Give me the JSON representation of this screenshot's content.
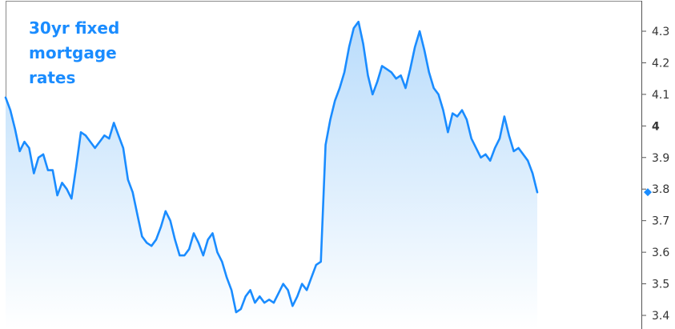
{
  "chart_data": {
    "type": "area",
    "title_lines": [
      "30yr fixed",
      "mortgage",
      "rates"
    ],
    "xlabel": "",
    "ylabel": "",
    "ylim": [
      3.4,
      4.33
    ],
    "y_ticks": [
      {
        "value": 4.3,
        "label": "4.3"
      },
      {
        "value": 4.2,
        "label": "4.2"
      },
      {
        "value": 4.1,
        "label": "4.1"
      },
      {
        "value": 4.0,
        "label": "4"
      },
      {
        "value": 3.9,
        "label": "3.9"
      },
      {
        "value": 3.8,
        "label": "3.8"
      },
      {
        "value": 3.7,
        "label": "3.7"
      },
      {
        "value": 3.6,
        "label": "3.6"
      },
      {
        "value": 3.5,
        "label": "3.5"
      },
      {
        "value": 3.4,
        "label": "3.4"
      }
    ],
    "grid": false,
    "line_color": "#1a8cff",
    "fill_top_color": "#b9dcfb",
    "fill_bottom_color": "#ffffff",
    "last_value": 3.79,
    "series": [
      {
        "values": [
          4.09,
          4.05,
          3.99,
          3.92,
          3.95,
          3.93,
          3.85,
          3.9,
          3.91,
          3.86,
          3.86,
          3.78,
          3.82,
          3.8,
          3.77,
          3.87,
          3.98,
          3.97,
          3.95,
          3.93,
          3.95,
          3.97,
          3.96,
          4.01,
          3.97,
          3.93,
          3.83,
          3.79,
          3.72,
          3.65,
          3.63,
          3.62,
          3.64,
          3.68,
          3.73,
          3.7,
          3.64,
          3.59,
          3.59,
          3.61,
          3.66,
          3.63,
          3.59,
          3.64,
          3.66,
          3.6,
          3.57,
          3.52,
          3.48,
          3.41,
          3.42,
          3.46,
          3.48,
          3.44,
          3.46,
          3.44,
          3.45,
          3.44,
          3.47,
          3.5,
          3.48,
          3.43,
          3.46,
          3.5,
          3.48,
          3.52,
          3.56,
          3.57,
          3.94,
          4.02,
          4.08,
          4.12,
          4.17,
          4.25,
          4.31,
          4.33,
          4.26,
          4.16,
          4.1,
          4.14,
          4.19,
          4.18,
          4.17,
          4.15,
          4.16,
          4.12,
          4.18,
          4.25,
          4.3,
          4.24,
          4.17,
          4.12,
          4.1,
          4.05,
          3.98,
          4.04,
          4.03,
          4.05,
          4.02,
          3.96,
          3.93,
          3.9,
          3.91,
          3.89,
          3.93,
          3.96,
          4.03,
          3.97,
          3.92,
          3.93,
          3.91,
          3.89,
          3.85,
          3.79
        ]
      }
    ]
  }
}
